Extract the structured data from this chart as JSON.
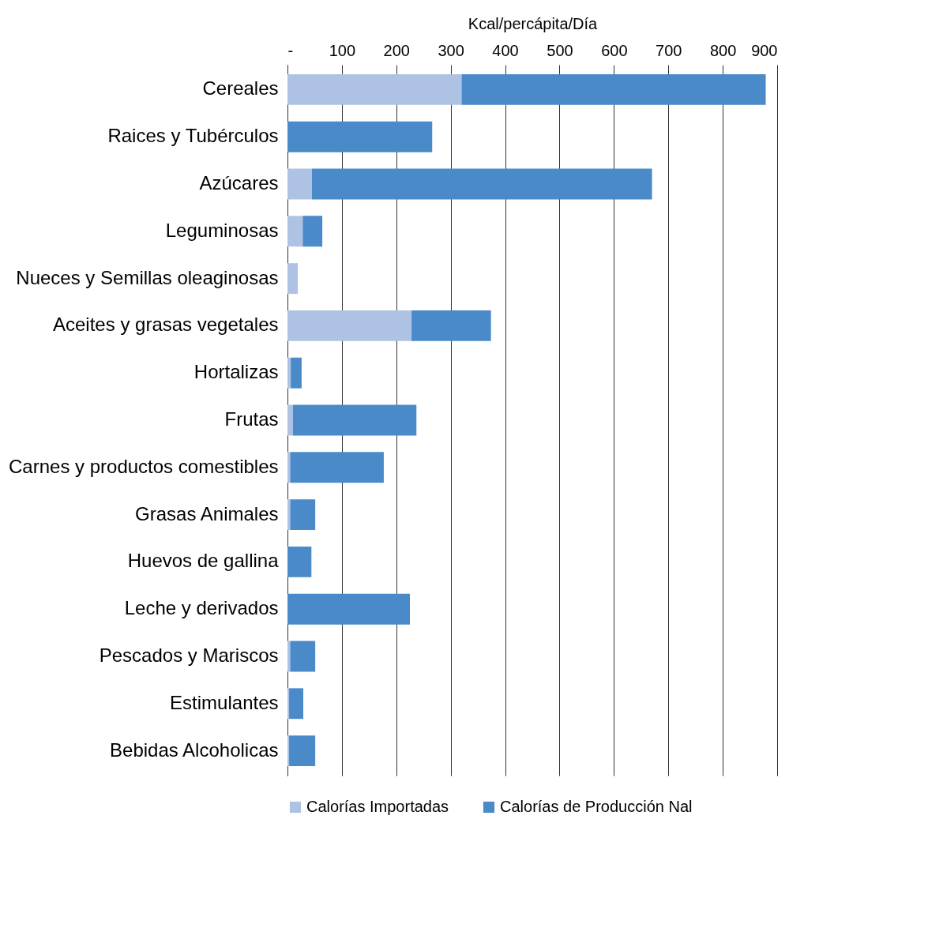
{
  "chart_data": {
    "type": "bar",
    "orientation": "horizontal",
    "stacked": true,
    "xlabel": "Kcal/percápita/Día",
    "categories": [
      "Cereales",
      "Raices y Tubérculos",
      "Azúcares",
      "Leguminosas",
      "Nueces y Semillas oleaginosas",
      "Aceites y grasas vegetales",
      "Hortalizas",
      "Frutas",
      "Carnes y productos comestibles",
      "Grasas Animales",
      "Huevos de gallina",
      "Leche y derivados",
      "Pescados y Mariscos",
      "Estimulantes",
      "Bebidas Alcoholicas"
    ],
    "series": [
      {
        "name": "Calorías Importadas",
        "color": "#aec3e4",
        "values": [
          320,
          0,
          45,
          28,
          19,
          228,
          6,
          10,
          5,
          5,
          0,
          0,
          5,
          3,
          3
        ]
      },
      {
        "name": "Calorías de Producción Nal",
        "color": "#4a8ac9",
        "values": [
          559,
          266,
          625,
          36,
          0,
          146,
          20,
          227,
          172,
          46,
          44,
          225,
          46,
          26,
          48
        ]
      }
    ],
    "xlim": [
      0,
      900
    ],
    "xticks": [
      {
        "value": 0,
        "label": "-"
      },
      100,
      200,
      300,
      400,
      500,
      600,
      700,
      800,
      900
    ],
    "grid": "x",
    "legend": "bottom"
  }
}
